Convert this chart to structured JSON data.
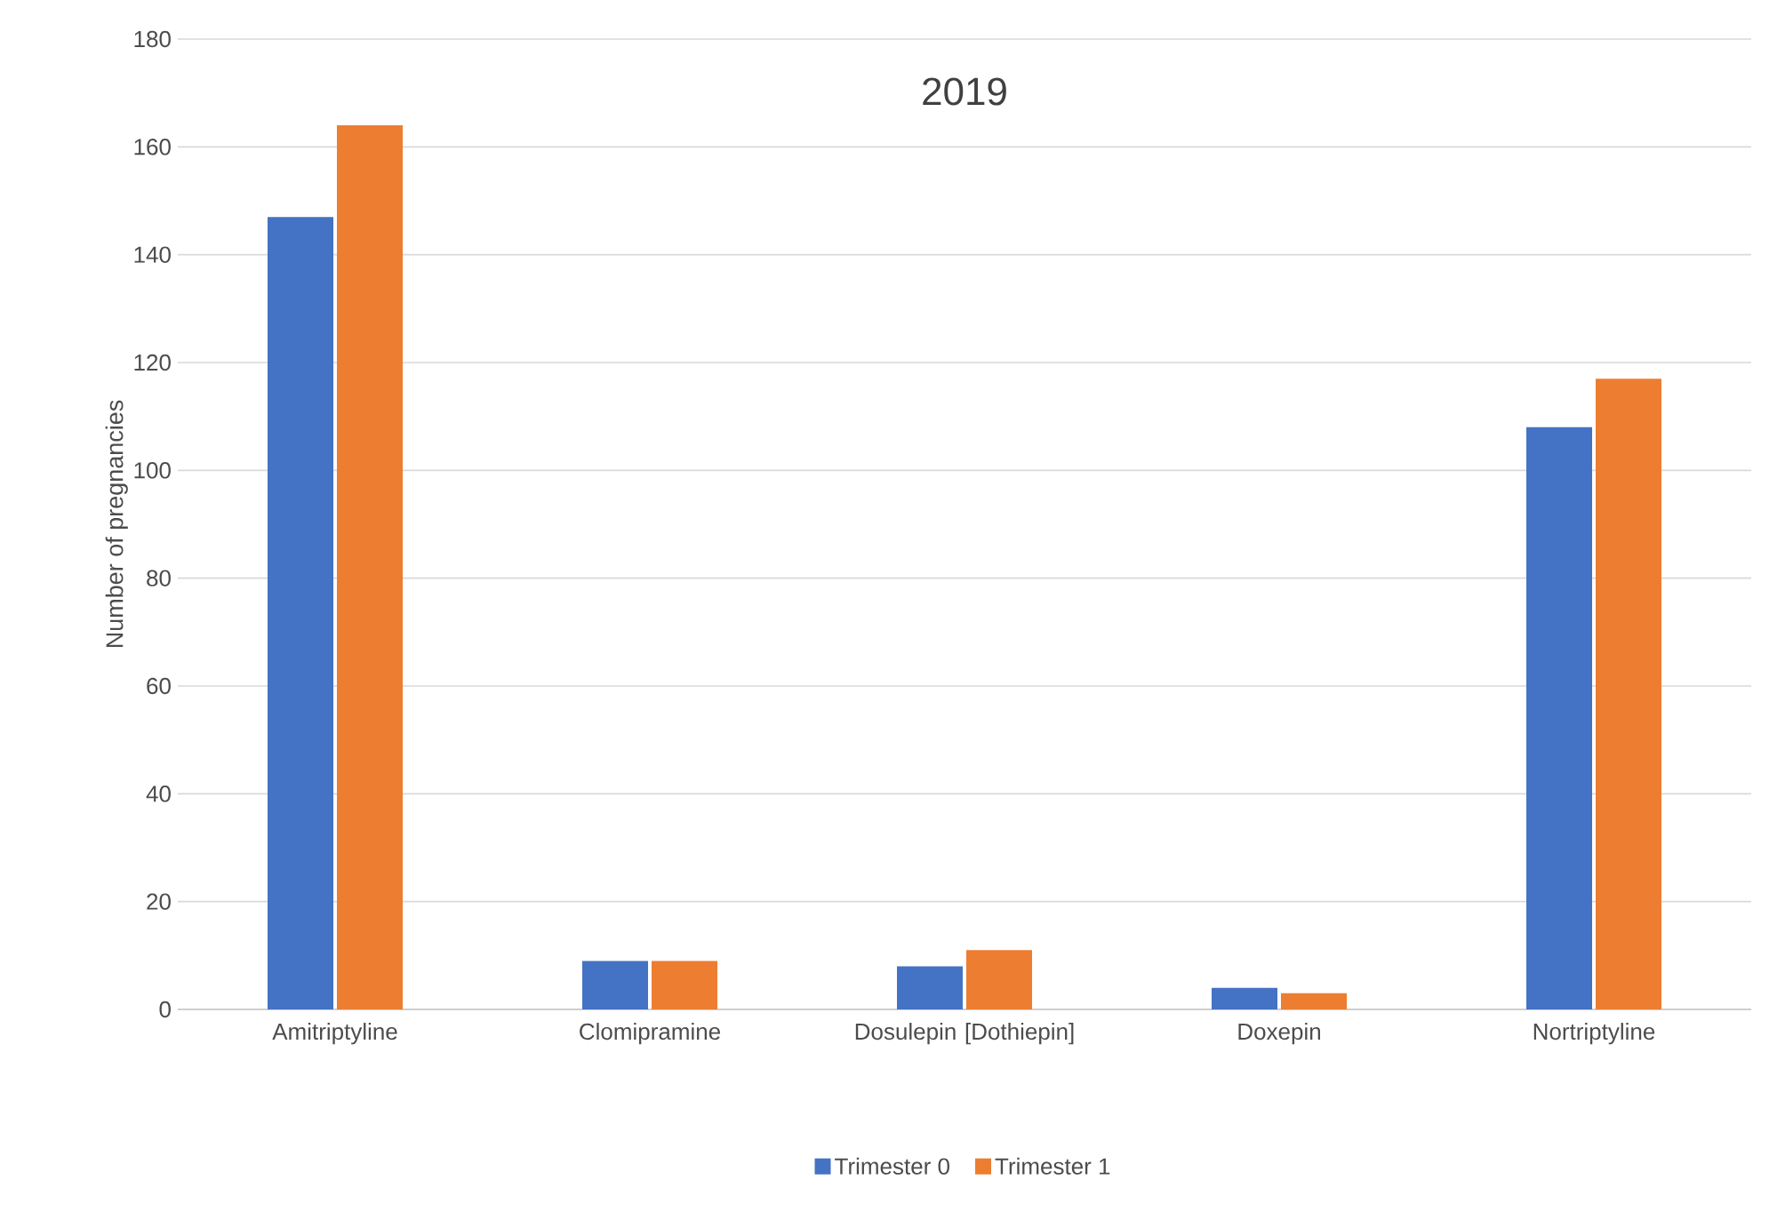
{
  "chart_data": {
    "type": "bar",
    "title": "2019",
    "ylabel": "Number of pregnancies",
    "categories": [
      "Amitriptyline",
      "Clomipramine",
      "Dosulepin [Dothiepin]",
      "Doxepin",
      "Nortriptyline"
    ],
    "series": [
      {
        "name": "Trimester 0",
        "color": "#4472c4",
        "values": [
          147,
          9,
          8,
          4,
          108
        ]
      },
      {
        "name": "Trimester 1",
        "color": "#ed7d31",
        "values": [
          164,
          9,
          11,
          3,
          117
        ]
      }
    ],
    "ylim": [
      0,
      180
    ],
    "yticks": [
      0,
      20,
      40,
      60,
      80,
      100,
      120,
      140,
      160,
      180
    ],
    "grid": "y",
    "legend": "bottom"
  }
}
